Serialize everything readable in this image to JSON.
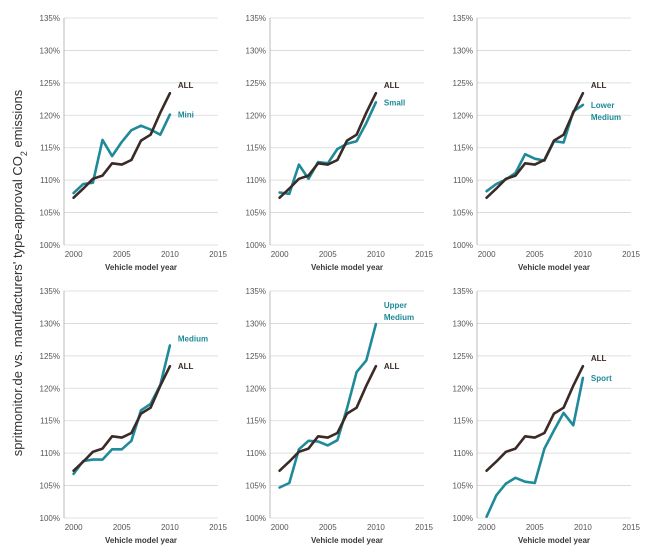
{
  "y_axis_label": {
    "main": "spritmonitor.de vs. manufacturers' type-approval CO",
    "subscript": "2",
    "tail": " emissions"
  },
  "colors": {
    "all": "#3b2a25",
    "segment": "#1f8a9a"
  },
  "chart_data": [
    {
      "type": "line",
      "segment_label": [
        "Mini"
      ],
      "xlabel": "Vehicle model year",
      "xlim": [
        1999,
        2015
      ],
      "xticks": [
        2000,
        2005,
        2010,
        2015
      ],
      "ylim": [
        100,
        135
      ],
      "yticks": [
        100,
        105,
        110,
        115,
        120,
        125,
        130,
        135
      ],
      "ytick_labels": [
        "100%",
        "105%",
        "110%",
        "115%",
        "120%",
        "125%",
        "130%",
        "135%"
      ],
      "x": [
        2000,
        2001,
        2002,
        2003,
        2004,
        2005,
        2006,
        2007,
        2008,
        2009,
        2010,
        2011
      ],
      "series": [
        {
          "name": "ALL",
          "values": [
            107.3,
            108.7,
            110.2,
            110.7,
            112.6,
            112.4,
            113.1,
            116.1,
            117.0,
            120.4,
            123.4,
            null
          ]
        },
        {
          "name": "Mini",
          "values": [
            108.0,
            109.4,
            109.6,
            116.2,
            113.7,
            115.9,
            117.7,
            118.4,
            117.8,
            117.0,
            120.1,
            null
          ]
        }
      ]
    },
    {
      "type": "line",
      "segment_label": [
        "Small"
      ],
      "xlabel": "Vehicle model year",
      "xlim": [
        1999,
        2015
      ],
      "xticks": [
        2000,
        2005,
        2010,
        2015
      ],
      "ylim": [
        100,
        135
      ],
      "yticks": [
        100,
        105,
        110,
        115,
        120,
        125,
        130,
        135
      ],
      "ytick_labels": [
        "100%",
        "105%",
        "110%",
        "115%",
        "120%",
        "125%",
        "130%",
        "135%"
      ],
      "x": [
        2000,
        2001,
        2002,
        2003,
        2004,
        2005,
        2006,
        2007,
        2008,
        2009,
        2010,
        2011
      ],
      "series": [
        {
          "name": "ALL",
          "values": [
            107.3,
            108.7,
            110.2,
            110.7,
            112.6,
            112.4,
            113.1,
            116.1,
            117.0,
            120.4,
            123.4,
            null
          ]
        },
        {
          "name": "Small",
          "values": [
            108.1,
            107.9,
            112.4,
            110.2,
            112.8,
            112.6,
            114.8,
            115.6,
            116.0,
            118.8,
            122.0,
            null
          ]
        }
      ]
    },
    {
      "type": "line",
      "segment_label": [
        "Lower",
        "Medium"
      ],
      "xlabel": "Vehicle model year",
      "xlim": [
        1999,
        2015
      ],
      "xticks": [
        2000,
        2005,
        2010,
        2015
      ],
      "ylim": [
        100,
        135
      ],
      "yticks": [
        100,
        105,
        110,
        115,
        120,
        125,
        130,
        135
      ],
      "ytick_labels": [
        "100%",
        "105%",
        "110%",
        "115%",
        "120%",
        "125%",
        "130%",
        "135%"
      ],
      "x": [
        2000,
        2001,
        2002,
        2003,
        2004,
        2005,
        2006,
        2007,
        2008,
        2009,
        2010,
        2011
      ],
      "series": [
        {
          "name": "ALL",
          "values": [
            107.3,
            108.7,
            110.2,
            110.7,
            112.6,
            112.4,
            113.1,
            116.1,
            117.0,
            120.4,
            123.4,
            null
          ]
        },
        {
          "name": "Lower Medium",
          "values": [
            108.3,
            109.4,
            110.1,
            111.1,
            114.0,
            113.3,
            113.0,
            116.0,
            115.8,
            120.6,
            121.6,
            null
          ]
        }
      ]
    },
    {
      "type": "line",
      "segment_label": [
        "Medium"
      ],
      "xlabel": "Vehicle model year",
      "xlim": [
        1999,
        2015
      ],
      "xticks": [
        2000,
        2005,
        2010,
        2015
      ],
      "ylim": [
        100,
        135
      ],
      "yticks": [
        100,
        105,
        110,
        115,
        120,
        125,
        130,
        135
      ],
      "ytick_labels": [
        "100%",
        "105%",
        "110%",
        "115%",
        "120%",
        "125%",
        "130%",
        "135%"
      ],
      "x": [
        2000,
        2001,
        2002,
        2003,
        2004,
        2005,
        2006,
        2007,
        2008,
        2009,
        2010,
        2011
      ],
      "series": [
        {
          "name": "ALL",
          "values": [
            107.3,
            108.7,
            110.2,
            110.7,
            112.6,
            112.4,
            113.1,
            116.1,
            117.0,
            120.4,
            123.4,
            null
          ]
        },
        {
          "name": "Medium",
          "values": [
            106.8,
            108.8,
            109.0,
            109.0,
            110.6,
            110.6,
            111.9,
            116.6,
            117.6,
            120.5,
            126.6,
            null
          ]
        }
      ]
    },
    {
      "type": "line",
      "segment_label": [
        "Upper",
        "Medium"
      ],
      "xlabel": "Vehicle model year",
      "xlim": [
        1999,
        2015
      ],
      "xticks": [
        2000,
        2005,
        2010,
        2015
      ],
      "ylim": [
        100,
        135
      ],
      "yticks": [
        100,
        105,
        110,
        115,
        120,
        125,
        130,
        135
      ],
      "ytick_labels": [
        "100%",
        "105%",
        "110%",
        "115%",
        "120%",
        "125%",
        "130%",
        "135%"
      ],
      "x": [
        2000,
        2001,
        2002,
        2003,
        2004,
        2005,
        2006,
        2007,
        2008,
        2009,
        2010,
        2011
      ],
      "series": [
        {
          "name": "ALL",
          "values": [
            107.3,
            108.7,
            110.2,
            110.7,
            112.6,
            112.4,
            113.1,
            116.1,
            117.0,
            120.4,
            123.4,
            null
          ]
        },
        {
          "name": "Upper Medium",
          "values": [
            104.7,
            105.4,
            110.6,
            111.9,
            111.8,
            111.2,
            112.0,
            116.9,
            122.5,
            124.3,
            129.9,
            null
          ]
        }
      ]
    },
    {
      "type": "line",
      "segment_label": [
        "Sport"
      ],
      "xlabel": "Vehicle model year",
      "xlim": [
        1999,
        2015
      ],
      "xticks": [
        2000,
        2005,
        2010,
        2015
      ],
      "ylim": [
        100,
        135
      ],
      "yticks": [
        100,
        105,
        110,
        115,
        120,
        125,
        130,
        135
      ],
      "ytick_labels": [
        "100%",
        "105%",
        "110%",
        "115%",
        "120%",
        "125%",
        "130%",
        "135%"
      ],
      "x": [
        2000,
        2001,
        2002,
        2003,
        2004,
        2005,
        2006,
        2007,
        2008,
        2009,
        2010,
        2011
      ],
      "series": [
        {
          "name": "ALL",
          "values": [
            107.3,
            108.7,
            110.2,
            110.7,
            112.6,
            112.4,
            113.1,
            116.1,
            117.0,
            120.4,
            123.4,
            null
          ]
        },
        {
          "name": "Sport",
          "values": [
            100.2,
            103.5,
            105.3,
            106.2,
            105.6,
            105.4,
            110.7,
            113.5,
            116.2,
            114.3,
            121.6,
            null
          ]
        }
      ]
    }
  ]
}
